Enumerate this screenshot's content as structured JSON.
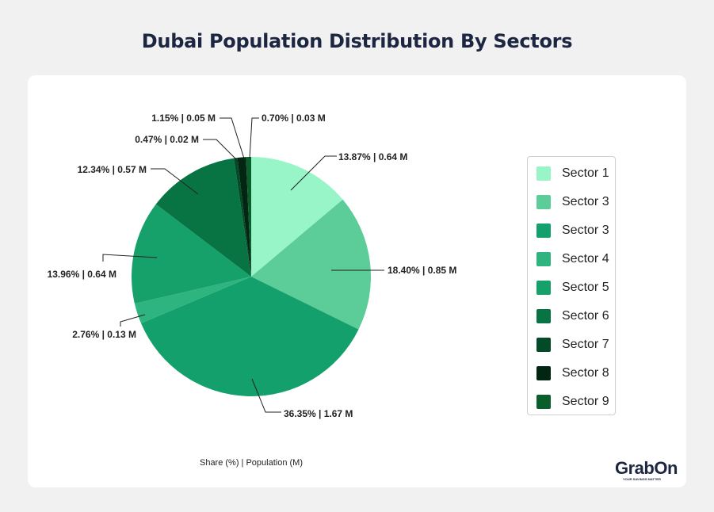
{
  "title": "Dubai Population Distribution By Sectors",
  "footer_note": "Share (%) | Population (M)",
  "logo": {
    "text": "GrabOn",
    "tagline": "YOUR SAVINGS MATTER"
  },
  "chart_data": {
    "type": "pie",
    "title": "Dubai Population Distribution By Sectors",
    "start_angle": "top, clockwise",
    "legend_placement": "right",
    "slices": [
      {
        "name": "Sector 1",
        "share": 13.87,
        "population_m": 0.64,
        "label": "13.87% | 0.64 M",
        "color": "#98f5c8"
      },
      {
        "name": "Sector 3",
        "share": 18.4,
        "population_m": 0.85,
        "label": "18.40% | 0.85 M",
        "color": "#5ccc98"
      },
      {
        "name": "Sector 3",
        "share": 36.35,
        "population_m": 1.67,
        "label": "36.35% | 1.67 M",
        "color": "#14a06c"
      },
      {
        "name": "Sector 4",
        "share": 2.76,
        "population_m": 0.13,
        "label": "2.76% | 0.13 M",
        "color": "#2eb47e"
      },
      {
        "name": "Sector 5",
        "share": 13.96,
        "population_m": 0.64,
        "label": "13.96% | 0.64 M",
        "color": "#16a06a"
      },
      {
        "name": "Sector 6",
        "share": 12.34,
        "population_m": 0.57,
        "label": "12.34% | 0.57 M",
        "color": "#087444"
      },
      {
        "name": "Sector 7",
        "share": 0.47,
        "population_m": 0.02,
        "label": "0.47% | 0.02 M",
        "color": "#034b28"
      },
      {
        "name": "Sector 8",
        "share": 1.15,
        "population_m": 0.05,
        "label": "1.15% | 0.05 M",
        "color": "#022612"
      },
      {
        "name": "Sector 9",
        "share": 0.7,
        "population_m": 0.03,
        "label": "0.70% | 0.03 M",
        "color": "#0a5e2c"
      }
    ]
  }
}
